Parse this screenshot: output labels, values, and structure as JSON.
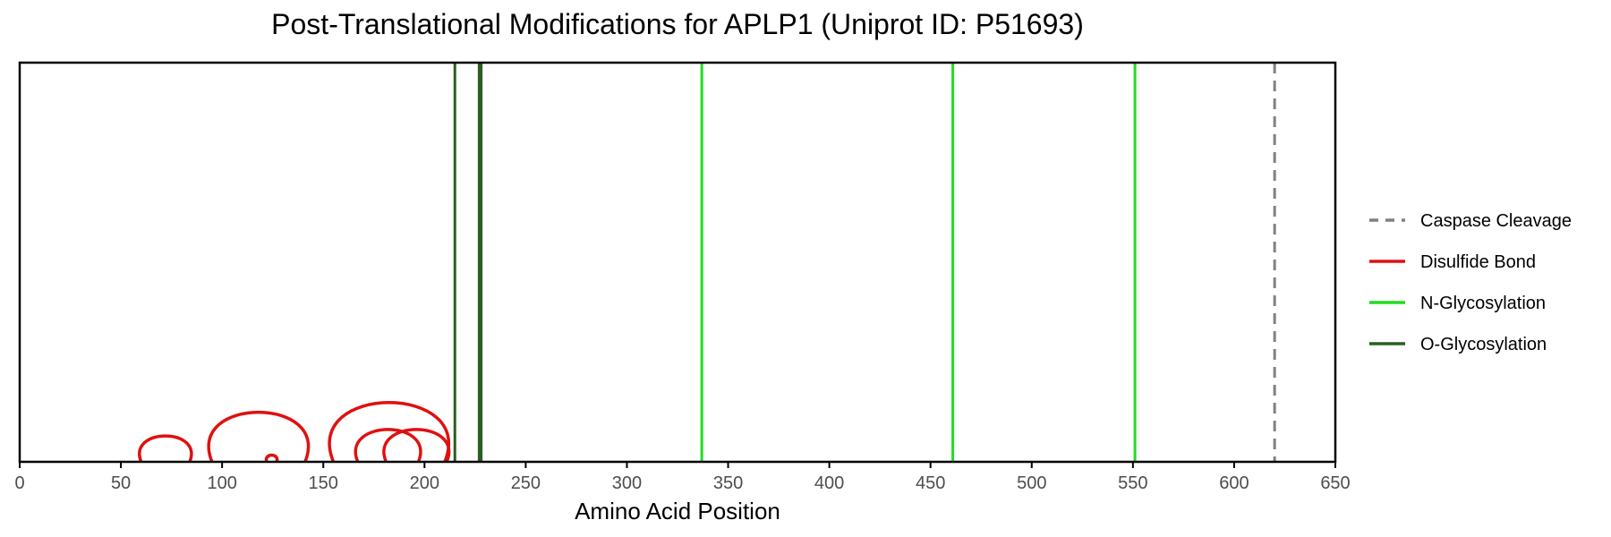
{
  "chart_data": {
    "type": "line",
    "title": "Post-Translational Modifications for APLP1 (Uniprot ID: P51693)",
    "xlabel": "Amino Acid Position",
    "ylabel": "",
    "xlim": [
      0,
      650
    ],
    "x_ticks": [
      0,
      50,
      100,
      150,
      200,
      250,
      300,
      350,
      400,
      450,
      500,
      550,
      600,
      650
    ],
    "grid": false,
    "legend_position": "right",
    "colors": {
      "Caspase Cleavage": "#808080",
      "Disulfide Bond": "#e01010",
      "N-Glycosylation": "#22dd22",
      "O-Glycosylation": "#2a5e22"
    },
    "legend": [
      {
        "name": "Caspase Cleavage",
        "style": "dashed"
      },
      {
        "name": "Disulfide Bond",
        "style": "solid"
      },
      {
        "name": "N-Glycosylation",
        "style": "solid"
      },
      {
        "name": "O-Glycosylation",
        "style": "solid"
      }
    ],
    "series": [
      {
        "name": "Caspase Cleavage",
        "kind": "vline",
        "positions": [
          620
        ]
      },
      {
        "name": "N-Glycosylation",
        "kind": "vline",
        "positions": [
          337,
          461,
          551
        ]
      },
      {
        "name": "O-Glycosylation",
        "kind": "vline",
        "positions": [
          215,
          227,
          228
        ]
      },
      {
        "name": "Disulfide Bond",
        "kind": "arc",
        "pairs": [
          [
            60,
            84
          ],
          [
            95,
            141
          ],
          [
            122,
            127
          ],
          [
            155,
            210
          ],
          [
            167,
            197
          ],
          [
            181,
            211
          ]
        ]
      }
    ]
  }
}
